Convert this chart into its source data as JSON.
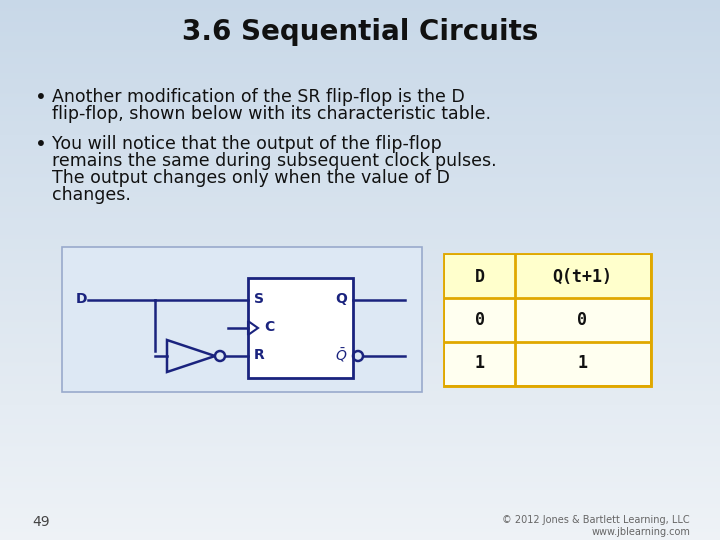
{
  "title": "3.6 Sequential Circuits",
  "title_fontsize": 20,
  "title_fontweight": "bold",
  "bullet1_line1": "Another modification of the SR flip-flop is the D",
  "bullet1_line2": "flip-flop, shown below with its characteristic table.",
  "bullet2_line1": "You will notice that the output of the flip-flop",
  "bullet2_line2": "remains the same during subsequent clock pulses.",
  "bullet2_line3": "The output changes only when the value of D",
  "bullet2_line4": "changes.",
  "text_fontsize": 12.5,
  "page_num": "49",
  "copyright": "© 2012 Jones & Bartlett Learning, LLC\nwww.jblearning.com",
  "bg_top_color": "#c8d8e8",
  "bg_bottom_color": "#eef2f6",
  "circuit_bg": "#dde8f4",
  "circuit_border": "#99aacc",
  "table_bg_header": "#ffffcc",
  "table_bg_data": "#fffff0",
  "table_border": "#e0a800",
  "circuit_color": "#1a237e",
  "text_color": "#111111"
}
